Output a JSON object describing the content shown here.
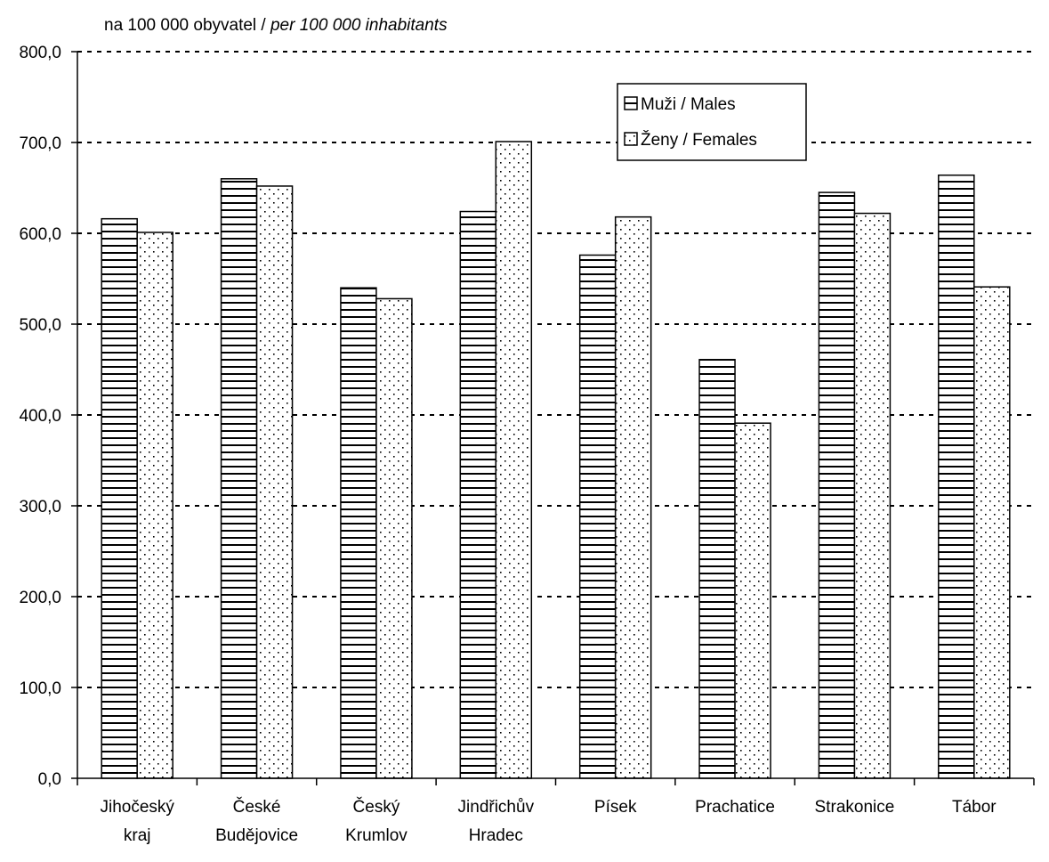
{
  "chart_data": {
    "type": "bar",
    "unit_label": {
      "main": "na 100 000 obyvatel / ",
      "italic": "per 100 000 inhabitants"
    },
    "categories": [
      [
        "Jihočeský",
        "kraj"
      ],
      [
        "České",
        "Budějovice"
      ],
      [
        "Český",
        "Krumlov"
      ],
      [
        "Jindřichův",
        "Hradec"
      ],
      [
        "Písek"
      ],
      [
        "Prachatice"
      ],
      [
        "Strakonice"
      ],
      [
        "Tábor"
      ]
    ],
    "series": [
      {
        "name": "Muži / Males",
        "pattern": "horizontal-lines",
        "values": [
          616,
          660,
          540,
          624,
          576,
          461,
          645,
          664
        ]
      },
      {
        "name": "Ženy / Females",
        "pattern": "dots",
        "values": [
          601,
          652,
          528,
          701,
          618,
          391,
          622,
          541
        ]
      }
    ],
    "ylim": [
      0,
      800
    ],
    "yticks": [
      "0,0",
      "100,0",
      "200,0",
      "300,0",
      "400,0",
      "500,0",
      "600,0",
      "700,0",
      "800,0"
    ],
    "grid": true,
    "grid_style": "dotted",
    "legend_position": "top-right",
    "colors": {
      "bar_fill": "#ffffff",
      "bar_pattern": "#000000",
      "axis": "#000000"
    }
  }
}
